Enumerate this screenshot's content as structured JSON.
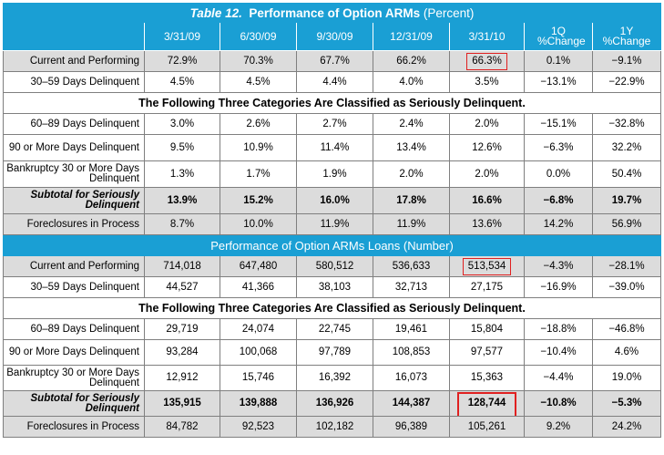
{
  "table_title_prefix": "Table 12.",
  "table_title_main": "Performance of Option ARMs",
  "table_title_suffix": "(Percent)",
  "columns": [
    "3/31/09",
    "6/30/09",
    "9/30/09",
    "12/31/09",
    "3/31/10",
    "1Q %Change",
    "1Y %Change"
  ],
  "percent_rows_top": [
    {
      "label": "Current and Performing",
      "values": [
        "72.9%",
        "70.3%",
        "67.7%",
        "66.2%",
        "66.3%",
        "0.1%",
        "−9.1%"
      ]
    },
    {
      "label": "30–59 Days Delinquent",
      "values": [
        "4.5%",
        "4.5%",
        "4.4%",
        "4.0%",
        "3.5%",
        "−13.1%",
        "−22.9%"
      ]
    }
  ],
  "classification_note": "The Following Three Categories Are Classified as Seriously Delinquent.",
  "percent_rows_serious": [
    {
      "label": "60–89 Days Delinquent",
      "values": [
        "3.0%",
        "2.6%",
        "2.7%",
        "2.4%",
        "2.0%",
        "−15.1%",
        "−32.8%"
      ]
    },
    {
      "label": "90 or More Days Delinquent",
      "values": [
        "9.5%",
        "10.9%",
        "11.4%",
        "13.4%",
        "12.6%",
        "−6.3%",
        "32.2%"
      ]
    },
    {
      "label": "Bankruptcy 30 or More Days Delinquent",
      "values": [
        "1.3%",
        "1.7%",
        "1.9%",
        "2.0%",
        "2.0%",
        "0.0%",
        "50.4%"
      ]
    }
  ],
  "percent_subtotal": {
    "label": "Subtotal for Seriously Delinquent",
    "values": [
      "13.9%",
      "15.2%",
      "16.0%",
      "17.8%",
      "16.6%",
      "−6.8%",
      "19.7%"
    ]
  },
  "percent_foreclosures": {
    "label": "Foreclosures in Process",
    "values": [
      "8.7%",
      "10.0%",
      "11.9%",
      "11.9%",
      "13.6%",
      "14.2%",
      "56.9%"
    ]
  },
  "section2_title": "Performance of Option ARMs Loans (Number)",
  "number_rows_top": [
    {
      "label": "Current and Performing",
      "values": [
        "714,018",
        "647,480",
        "580,512",
        "536,633",
        "513,534",
        "−4.3%",
        "−28.1%"
      ]
    },
    {
      "label": "30–59 Days Delinquent",
      "values": [
        "44,527",
        "41,366",
        "38,103",
        "32,713",
        "27,175",
        "−16.9%",
        "−39.0%"
      ]
    }
  ],
  "number_rows_serious": [
    {
      "label": "60–89 Days Delinquent",
      "values": [
        "29,719",
        "24,074",
        "22,745",
        "19,461",
        "15,804",
        "−18.8%",
        "−46.8%"
      ]
    },
    {
      "label": "90 or More Days Delinquent",
      "values": [
        "93,284",
        "100,068",
        "97,789",
        "108,853",
        "97,577",
        "−10.4%",
        "4.6%"
      ]
    },
    {
      "label": "Bankruptcy 30 or More Days Delinquent",
      "values": [
        "12,912",
        "15,746",
        "16,392",
        "16,073",
        "15,363",
        "−4.4%",
        "19.0%"
      ]
    }
  ],
  "number_subtotal": {
    "label": "Subtotal for Seriously Delinquent",
    "values": [
      "135,915",
      "139,888",
      "136,926",
      "144,387",
      "128,744",
      "−10.8%",
      "−5.3%"
    ]
  },
  "number_foreclosures": {
    "label": "Foreclosures in Process",
    "values": [
      "84,782",
      "92,523",
      "102,182",
      "96,389",
      "105,261",
      "9.2%",
      "24.2%"
    ]
  },
  "highlight_color": "#e02020",
  "header_color": "#1a9fd4",
  "shade_color": "#dcdcdc"
}
